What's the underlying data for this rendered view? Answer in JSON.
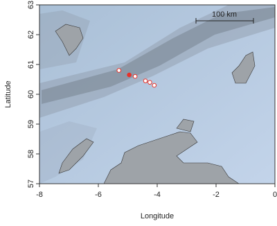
{
  "chart_data": {
    "type": "scatter",
    "x_label": "Longitude",
    "y_label": "Latitude",
    "scale_bar_label": "100 km",
    "x": [
      -5.3,
      -4.95,
      -4.75,
      -4.4,
      -4.25,
      -4.1
    ],
    "y": [
      60.8,
      60.65,
      60.6,
      60.45,
      60.4,
      60.3
    ],
    "filled": [
      false,
      true,
      false,
      false,
      false,
      false
    ],
    "color": "#e8322a",
    "xlim": [
      -8,
      0
    ],
    "ylim": [
      57,
      63
    ],
    "xticks": [
      -8,
      -6,
      -4,
      -2,
      0
    ],
    "yticks": [
      57,
      58,
      59,
      60,
      61,
      62,
      63
    ]
  }
}
